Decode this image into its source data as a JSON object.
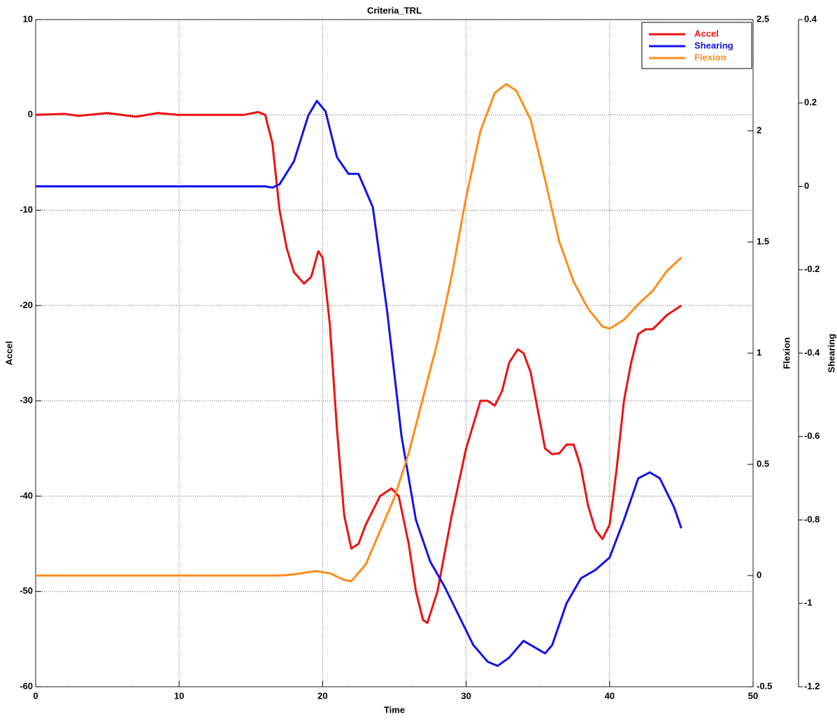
{
  "chart_data": {
    "type": "line",
    "title": "Criteria_TRL",
    "x_label": "Time",
    "y_label": "Accel",
    "y2_label": "Flexion",
    "y3_label": "Shearing",
    "xlim": [
      0,
      50
    ],
    "xticks": [
      0,
      10,
      20,
      30,
      40,
      50
    ],
    "ylim": [
      -60,
      10
    ],
    "yticks": [
      10,
      0,
      -10,
      -20,
      -30,
      -40,
      -50,
      -60
    ],
    "y2lim": [
      -0.5,
      2.5
    ],
    "y2ticks": [
      2.5,
      2,
      1.5,
      1,
      0.5,
      0,
      -0.5
    ],
    "y3lim": [
      -1.2,
      0.4
    ],
    "y3ticks": [
      0.4,
      0.2,
      0,
      -0.2,
      -0.4,
      -0.6,
      -0.8,
      -1,
      -1.2
    ],
    "grid": true,
    "legend": "upper right",
    "series": [
      {
        "name": "Accel",
        "color": "#ee1111",
        "axis": "y",
        "x": [
          0,
          2,
          3,
          5,
          7,
          8.5,
          10,
          13,
          14.5,
          15.5,
          16,
          16.5,
          17,
          17.5,
          18,
          18.7,
          19.2,
          19.7,
          20,
          20.5,
          21,
          21.5,
          22,
          22.5,
          23,
          24,
          24.8,
          25.3,
          26,
          26.5,
          27,
          27.3,
          28,
          29,
          30,
          31,
          31.5,
          32,
          32.5,
          33,
          33.6,
          34,
          34.5,
          35,
          35.5,
          36,
          36.5,
          37,
          37.5,
          38,
          38.5,
          39,
          39.5,
          40,
          40.5,
          41,
          41.5,
          42,
          42.5,
          43,
          44,
          45
        ],
        "values": [
          0,
          0.1,
          -0.1,
          0.2,
          -0.2,
          0.2,
          0,
          0,
          0,
          0.3,
          0,
          -3,
          -10,
          -14,
          -16.5,
          -17.7,
          -17,
          -14.3,
          -15,
          -22,
          -33,
          -42,
          -45.5,
          -45,
          -43,
          -40,
          -39.2,
          -40,
          -45,
          -50,
          -53,
          -53.3,
          -50,
          -42,
          -35,
          -30,
          -30,
          -30.5,
          -29,
          -26,
          -24.6,
          -25,
          -27,
          -31,
          -35,
          -35.6,
          -35.5,
          -34.6,
          -34.6,
          -37,
          -41,
          -43.5,
          -44.5,
          -43,
          -37,
          -30,
          -26,
          -23,
          -22.5,
          -22.5,
          -21,
          -20
        ]
      },
      {
        "name": "Shearing",
        "color": "#1111ee",
        "axis": "y3",
        "x": [
          0,
          16,
          16.5,
          17,
          18,
          19,
          19.6,
          20.2,
          21,
          21.8,
          22.5,
          23.5,
          24.5,
          25.5,
          26.5,
          27.5,
          28.5,
          29.5,
          30.5,
          31.5,
          32.2,
          33,
          34,
          35,
          35.5,
          36,
          37,
          38,
          39,
          40,
          41,
          42,
          42.8,
          43.5,
          44.5,
          45
        ],
        "values": [
          0,
          0,
          -0.003,
          0.005,
          0.06,
          0.17,
          0.205,
          0.18,
          0.07,
          0.03,
          0.03,
          -0.05,
          -0.3,
          -0.6,
          -0.8,
          -0.9,
          -0.96,
          -1.03,
          -1.1,
          -1.14,
          -1.15,
          -1.13,
          -1.09,
          -1.11,
          -1.12,
          -1.1,
          -1,
          -0.94,
          -0.92,
          -0.89,
          -0.8,
          -0.7,
          -0.686,
          -0.7,
          -0.77,
          -0.82
        ]
      },
      {
        "name": "Flexion",
        "color": "#ff8c1a",
        "axis": "y2",
        "x": [
          0,
          17,
          18,
          19.5,
          20.5,
          21.5,
          22,
          23,
          24,
          25,
          26,
          27,
          28,
          29,
          30,
          31,
          32,
          32.8,
          33.5,
          34.5,
          35.5,
          36.5,
          37.5,
          38.5,
          39.5,
          40,
          41,
          42,
          43,
          44,
          45
        ],
        "values": [
          0,
          0,
          0.005,
          0.02,
          0.01,
          -0.02,
          -0.025,
          0.05,
          0.2,
          0.35,
          0.55,
          0.8,
          1.05,
          1.35,
          1.7,
          2,
          2.17,
          2.21,
          2.18,
          2.05,
          1.78,
          1.5,
          1.32,
          1.2,
          1.12,
          1.11,
          1.15,
          1.22,
          1.28,
          1.37,
          1.43
        ]
      }
    ]
  }
}
